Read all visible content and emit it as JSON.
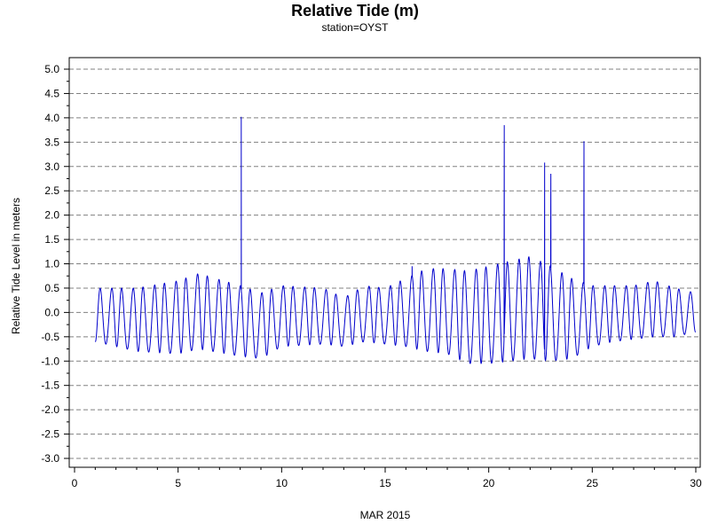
{
  "chart_data": {
    "type": "line",
    "title": "Relative Tide (m)",
    "subtitle": "station=OYST",
    "xlabel": "MAR 2015",
    "ylabel": "Relative Tide Level in meters",
    "xlim": [
      0,
      30
    ],
    "ylim": [
      -3.0,
      5.0
    ],
    "xticks": [
      0,
      5,
      10,
      15,
      20,
      25,
      30
    ],
    "yticks": [
      -3.0,
      -2.5,
      -2.0,
      -1.5,
      -1.0,
      -0.5,
      0.0,
      0.5,
      1.0,
      1.5,
      2.0,
      2.5,
      3.0,
      3.5,
      4.0,
      4.5,
      5.0
    ],
    "ytick_labels": [
      "-3.0",
      "-2.5",
      "-2.0",
      "-1.5",
      "-1.0",
      "-0.5",
      "0.0",
      "0.5",
      "1.0",
      "1.5",
      "2.0",
      "2.5",
      "3.0",
      "3.5",
      "4.0",
      "4.5",
      "5.0"
    ],
    "grid": "horizontal dashed at major y ticks",
    "line_color": "#0000cc",
    "series": [
      {
        "x_start": 1.0,
        "x_end": 30.0,
        "tidal_period_days": 0.5175,
        "envelope": [
          {
            "day": 1,
            "high": 0.5,
            "low": -0.6
          },
          {
            "day": 3,
            "high": 0.5,
            "low": -0.8
          },
          {
            "day": 5,
            "high": 0.65,
            "low": -0.85
          },
          {
            "day": 6,
            "high": 0.8,
            "low": -0.75
          },
          {
            "day": 8,
            "high": 0.55,
            "low": -0.9
          },
          {
            "day": 9,
            "high": 0.4,
            "low": -0.95
          },
          {
            "day": 10,
            "high": 0.55,
            "low": -0.7
          },
          {
            "day": 12,
            "high": 0.5,
            "low": -0.65
          },
          {
            "day": 13,
            "high": 0.3,
            "low": -0.7
          },
          {
            "day": 14,
            "high": 0.55,
            "low": -0.6
          },
          {
            "day": 15,
            "high": 0.5,
            "low": -0.65
          },
          {
            "day": 16,
            "high": 0.7,
            "low": -0.7
          },
          {
            "day": 17,
            "high": 0.9,
            "low": -0.8
          },
          {
            "day": 18,
            "high": 0.9,
            "low": -0.85
          },
          {
            "day": 19,
            "high": 0.85,
            "low": -1.05
          },
          {
            "day": 20,
            "high": 0.95,
            "low": -1.05
          },
          {
            "day": 21,
            "high": 1.05,
            "low": -1.0
          },
          {
            "day": 22,
            "high": 1.15,
            "low": -0.95
          },
          {
            "day": 23,
            "high": 0.95,
            "low": -1.0
          },
          {
            "day": 24,
            "high": 0.7,
            "low": -0.95
          },
          {
            "day": 25,
            "high": 0.55,
            "low": -0.7
          },
          {
            "day": 26,
            "high": 0.55,
            "low": -0.6
          },
          {
            "day": 27,
            "high": 0.55,
            "low": -0.55
          },
          {
            "day": 28,
            "high": 0.65,
            "low": -0.5
          },
          {
            "day": 29,
            "high": 0.5,
            "low": -0.5
          },
          {
            "day": 30,
            "high": 0.4,
            "low": -0.4
          }
        ],
        "spikes": [
          {
            "x": 8.05,
            "y": 4.02
          },
          {
            "x": 16.3,
            "y": 0.95
          },
          {
            "x": 20.75,
            "y": 3.85
          },
          {
            "x": 22.7,
            "y": 3.08
          },
          {
            "x": 23.0,
            "y": 2.85
          },
          {
            "x": 24.6,
            "y": 3.52
          }
        ]
      }
    ]
  }
}
